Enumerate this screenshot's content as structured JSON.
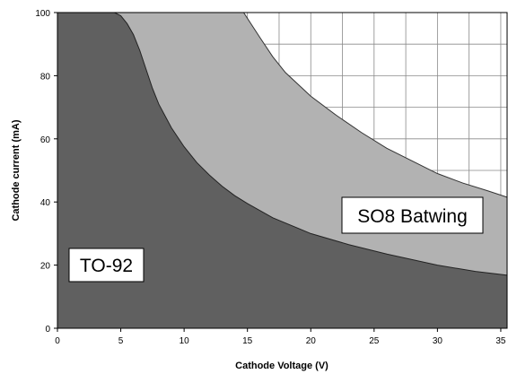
{
  "chart_data": {
    "type": "area",
    "xlabel": "Cathode Voltage (V)",
    "ylabel": "Cathode current (mA)",
    "xlim": [
      0,
      35.5
    ],
    "ylim": [
      0,
      100
    ],
    "x_ticks": [
      "0",
      "5",
      "10",
      "15",
      "20",
      "25",
      "30",
      "35"
    ],
    "y_ticks": [
      "0",
      "20",
      "40",
      "60",
      "80",
      "100"
    ],
    "grid": true,
    "series": [
      {
        "name": "SO8 Batwing",
        "color": "#b2b2b2",
        "points": [
          [
            14.7,
            100
          ],
          [
            16,
            92
          ],
          [
            17,
            86
          ],
          [
            18,
            81
          ],
          [
            20,
            73.5
          ],
          [
            22,
            67.5
          ],
          [
            24,
            62
          ],
          [
            26,
            57
          ],
          [
            28,
            53
          ],
          [
            30,
            49
          ],
          [
            32,
            46
          ],
          [
            34,
            43.5
          ],
          [
            35.5,
            41.5
          ]
        ]
      },
      {
        "name": "TO-92",
        "color": "#606060",
        "points": [
          [
            4.5,
            100
          ],
          [
            5,
            99
          ],
          [
            5.5,
            96.5
          ],
          [
            6,
            93
          ],
          [
            6.5,
            88
          ],
          [
            7,
            82
          ],
          [
            7.5,
            76
          ],
          [
            8,
            71
          ],
          [
            9,
            63.5
          ],
          [
            10,
            57.5
          ],
          [
            11,
            52.5
          ],
          [
            12,
            48.5
          ],
          [
            13,
            45
          ],
          [
            14,
            42
          ],
          [
            15,
            39.5
          ],
          [
            17,
            35
          ],
          [
            20,
            30
          ],
          [
            23,
            26.5
          ],
          [
            26,
            23.5
          ],
          [
            30,
            20
          ],
          [
            33,
            18
          ],
          [
            35.5,
            16.8
          ]
        ]
      }
    ],
    "annotations": [
      {
        "text": "SO8 Batwing",
        "x": 29,
        "y": 36.5
      },
      {
        "text": "TO-92",
        "x": 4.5,
        "y": 20
      }
    ]
  }
}
